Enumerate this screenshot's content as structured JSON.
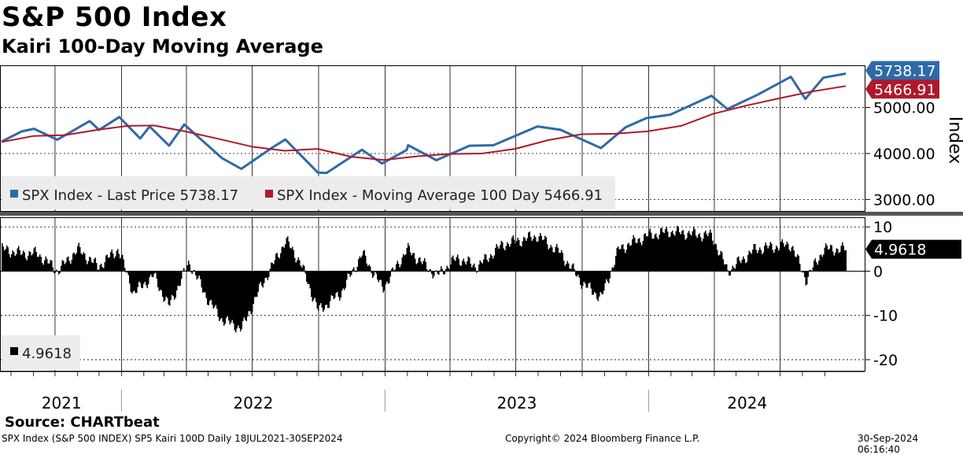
{
  "title": "S&P 500 Index",
  "subtitle": "Kairi 100-Day Moving Average",
  "source": "Source: CHARTbeat",
  "footer": {
    "left": "SPX Index (S&P 500 INDEX) SP5 Kairi 100D  Daily 18JUL2021-30SEP2024",
    "center": "Copyright© 2024 Bloomberg Finance L.P.",
    "right": "30-Sep-2024 06:16:40"
  },
  "colors": {
    "price": "#2e6aa8",
    "ma": "#b0182a",
    "kairi": "#000000",
    "grid": "#000000"
  },
  "chart_data": [
    {
      "type": "line",
      "ylabel": "Index",
      "y_ticks": [
        "3000.00",
        "4000.00",
        "5000.00"
      ],
      "y_tick_values": [
        3000,
        4000,
        5000
      ],
      "ylim": [
        2750,
        5900
      ],
      "legend": [
        {
          "name": "SPX Index - Last Price 5738.17",
          "color": "#2e6aa8"
        },
        {
          "name": "SPX Index - Moving Average 100 Day 5466.91",
          "color": "#b0182a"
        }
      ],
      "last_labels": [
        {
          "text": "5738.17",
          "value": 5738.17,
          "color": "#2e6aa8"
        },
        {
          "text": "5466.91",
          "value": 5466.91,
          "color": "#b0182a"
        }
      ],
      "series": [
        {
          "name": "SPX Index - Last Price",
          "color": "#2e6aa8",
          "x": [
            "2021-07-19",
            "2021-08-16",
            "2021-09-02",
            "2021-10-04",
            "2021-11-18",
            "2021-12-01",
            "2021-12-29",
            "2022-01-27",
            "2022-02-09",
            "2022-03-08",
            "2022-03-29",
            "2022-05-20",
            "2022-06-16",
            "2022-07-29",
            "2022-08-16",
            "2022-09-30",
            "2022-10-12",
            "2022-11-30",
            "2022-12-28",
            "2023-01-31",
            "2023-02-02",
            "2023-03-13",
            "2023-04-28",
            "2023-05-31",
            "2023-07-31",
            "2023-09-01",
            "2023-10-27",
            "2023-11-30",
            "2023-12-29",
            "2024-01-31",
            "2024-03-28",
            "2024-04-19",
            "2024-05-31",
            "2024-07-16",
            "2024-08-05",
            "2024-08-30",
            "2024-09-30"
          ],
          "values": [
            4260,
            4480,
            4537,
            4300,
            4705,
            4513,
            4793,
            4326,
            4587,
            4170,
            4631,
            3901,
            3666,
            4130,
            4305,
            3585,
            3577,
            4080,
            3783,
            4077,
            4179,
            3855,
            4169,
            4180,
            4589,
            4515,
            4117,
            4568,
            4770,
            4846,
            5254,
            4967,
            5278,
            5667,
            5186,
            5648,
            5738.17
          ]
        },
        {
          "name": "SPX Index - Moving Average 100 Day",
          "color": "#b0182a",
          "x": [
            "2021-07-19",
            "2021-09-01",
            "2021-10-15",
            "2021-12-01",
            "2022-01-10",
            "2022-02-15",
            "2022-03-30",
            "2022-05-15",
            "2022-06-30",
            "2022-08-15",
            "2022-09-30",
            "2022-11-15",
            "2022-12-30",
            "2023-02-15",
            "2023-03-30",
            "2023-05-15",
            "2023-06-30",
            "2023-08-15",
            "2023-09-30",
            "2023-11-15",
            "2023-12-30",
            "2024-02-15",
            "2024-03-30",
            "2024-05-15",
            "2024-06-30",
            "2024-08-15",
            "2024-09-30"
          ],
          "values": [
            4250,
            4380,
            4400,
            4520,
            4600,
            4610,
            4480,
            4320,
            4150,
            4060,
            4100,
            3930,
            3860,
            3940,
            3990,
            4000,
            4100,
            4290,
            4420,
            4430,
            4480,
            4600,
            4860,
            5040,
            5200,
            5350,
            5466.91
          ]
        }
      ]
    },
    {
      "type": "bar",
      "y_ticks": [
        "-20",
        "-10",
        "0",
        "10"
      ],
      "y_tick_values": [
        -20,
        -10,
        0,
        10
      ],
      "ylim": [
        -22.5,
        12
      ],
      "legend": [
        {
          "name": "4.9618",
          "color": "#000000"
        }
      ],
      "last_label": {
        "text": "4.9618",
        "value": 4.9618
      },
      "series": [
        {
          "name": "Kairi 100D",
          "x": [
            "2021-07-19",
            "2021-08-15",
            "2021-09-06",
            "2021-10-04",
            "2021-11-01",
            "2021-11-29",
            "2021-12-27",
            "2022-01-17",
            "2022-02-14",
            "2022-03-07",
            "2022-04-04",
            "2022-05-02",
            "2022-05-20",
            "2022-06-16",
            "2022-07-11",
            "2022-08-16",
            "2022-09-05",
            "2022-09-30",
            "2022-10-31",
            "2022-11-30",
            "2022-12-28",
            "2023-01-31",
            "2023-02-27",
            "2023-03-13",
            "2023-04-10",
            "2023-05-08",
            "2023-06-12",
            "2023-07-31",
            "2023-09-01",
            "2023-10-02",
            "2023-10-27",
            "2023-11-20",
            "2023-12-29",
            "2024-01-29",
            "2024-03-28",
            "2024-04-19",
            "2024-05-27",
            "2024-07-16",
            "2024-08-05",
            "2024-08-30",
            "2024-09-30"
          ],
          "values": [
            5,
            4,
            4,
            0,
            5,
            1,
            5,
            -5,
            -1,
            -8,
            2,
            -7,
            -11,
            -13,
            -4,
            7,
            2,
            -9,
            -5,
            4,
            -4,
            5,
            1,
            -1,
            3,
            1,
            6,
            8,
            4,
            -3,
            -6,
            5,
            8,
            9,
            8,
            0,
            5,
            6,
            -2,
            5,
            4.9618
          ]
        }
      ]
    }
  ],
  "x_years": [
    "2021",
    "2022",
    "2023",
    "2024"
  ]
}
